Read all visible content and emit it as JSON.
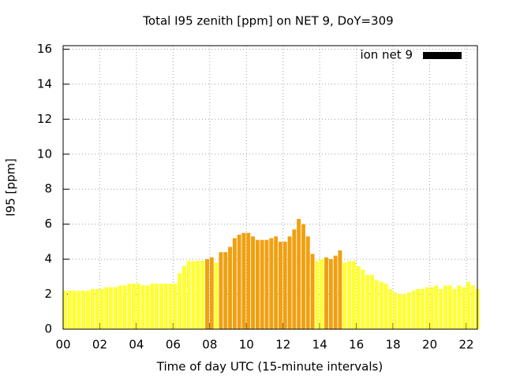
{
  "chart_data": {
    "type": "bar",
    "title": "Total I95 zenith [ppm] on NET 9, DoY=309",
    "xlabel": "Time of day UTC (15-minute intervals)",
    "ylabel": "I95 [ppm]",
    "x": [
      0,
      0.25,
      0.5,
      0.75,
      1,
      1.25,
      1.5,
      1.75,
      2,
      2.25,
      2.5,
      2.75,
      3,
      3.25,
      3.5,
      3.75,
      4,
      4.25,
      4.5,
      4.75,
      5,
      5.25,
      5.5,
      5.75,
      6,
      6.25,
      6.5,
      6.75,
      7,
      7.25,
      7.5,
      7.75,
      8,
      8.25,
      8.5,
      8.75,
      9,
      9.25,
      9.5,
      9.75,
      10,
      10.25,
      10.5,
      10.75,
      11,
      11.25,
      11.5,
      11.75,
      12,
      12.25,
      12.5,
      12.75,
      13,
      13.25,
      13.5,
      13.75,
      14,
      14.25,
      14.5,
      14.75,
      15,
      15.25,
      15.5,
      15.75,
      16,
      16.25,
      16.5,
      16.75,
      17,
      17.25,
      17.5,
      17.75,
      18,
      18.25,
      18.5,
      18.75,
      19,
      19.25,
      19.5,
      19.75,
      20,
      20.25,
      20.5,
      20.75,
      21,
      21.25,
      21.5,
      21.75,
      22,
      22.25,
      22.5
    ],
    "series": [
      {
        "name": "ion net 9",
        "color": "#000000",
        "values": [
          2.2,
          2.2,
          2.2,
          2.2,
          2.2,
          2.2,
          2.3,
          2.3,
          2.3,
          2.4,
          2.4,
          2.4,
          2.5,
          2.5,
          2.6,
          2.6,
          2.6,
          2.5,
          2.5,
          2.6,
          2.6,
          2.6,
          2.6,
          2.6,
          2.6,
          3.2,
          3.6,
          3.9,
          3.9,
          3.9,
          3.9,
          4.0,
          4.1,
          3.8,
          4.4,
          4.4,
          4.7,
          5.2,
          5.4,
          5.5,
          5.5,
          5.3,
          5.1,
          5.1,
          5.1,
          5.2,
          5.3,
          5.0,
          5.0,
          5.3,
          5.7,
          6.3,
          6.0,
          5.3,
          4.3,
          3.9,
          4.0,
          4.1,
          4.0,
          4.2,
          4.5,
          3.8,
          3.9,
          3.9,
          3.6,
          3.4,
          3.1,
          3.1,
          2.8,
          2.7,
          2.6,
          2.3,
          2.1,
          2.0,
          2.0,
          2.1,
          2.2,
          2.3,
          2.3,
          2.4,
          2.4,
          2.5,
          2.3,
          2.5,
          2.5,
          2.3,
          2.5,
          2.4,
          2.7,
          2.5,
          2.3
        ],
        "colors": [
          "#ffff33",
          "#ffff33",
          "#ffff33",
          "#ffff33",
          "#ffff33",
          "#ffff33",
          "#ffff33",
          "#ffff33",
          "#ffff33",
          "#ffff33",
          "#ffff33",
          "#ffff33",
          "#ffff33",
          "#ffff33",
          "#ffff33",
          "#ffff33",
          "#ffff33",
          "#ffff33",
          "#ffff33",
          "#ffff33",
          "#ffff33",
          "#ffff33",
          "#ffff33",
          "#ffff33",
          "#ffff33",
          "#ffff33",
          "#ffff33",
          "#ffff33",
          "#ffff33",
          "#ffff33",
          "#ffff33",
          "#f0a010",
          "#f0a010",
          "#ffff33",
          "#f0a010",
          "#f0a010",
          "#f0a010",
          "#f0a010",
          "#f0a010",
          "#f0a010",
          "#f0a010",
          "#f0a010",
          "#f0a010",
          "#f0a010",
          "#f0a010",
          "#f0a010",
          "#f0a010",
          "#f0a010",
          "#f0a010",
          "#f0a010",
          "#f0a010",
          "#f0a010",
          "#f0a010",
          "#f0a010",
          "#f0a010",
          "#ffff33",
          "#ffff33",
          "#f0a010",
          "#f0a010",
          "#f0a010",
          "#f0a010",
          "#ffff33",
          "#ffff33",
          "#ffff33",
          "#ffff33",
          "#ffff33",
          "#ffff33",
          "#ffff33",
          "#ffff33",
          "#ffff33",
          "#ffff33",
          "#ffff33",
          "#ffff33",
          "#ffff33",
          "#ffff33",
          "#ffff33",
          "#ffff33",
          "#ffff33",
          "#ffff33",
          "#ffff33",
          "#ffff33",
          "#ffff33",
          "#ffff33",
          "#ffff33",
          "#ffff33",
          "#ffff33",
          "#ffff33",
          "#ffff33",
          "#ffff33",
          "#ffff33",
          "#ffff33"
        ]
      }
    ],
    "xlim": [
      0,
      22.6
    ],
    "xticks": [
      {
        "value": 0,
        "label": "00"
      },
      {
        "value": 2,
        "label": "02"
      },
      {
        "value": 4,
        "label": "04"
      },
      {
        "value": 6,
        "label": "06"
      },
      {
        "value": 8,
        "label": "08"
      },
      10,
      12,
      14,
      16,
      18,
      20,
      22
    ],
    "ylim": [
      0,
      16.2
    ],
    "yticks": [
      0,
      2,
      4,
      6,
      8,
      10,
      12,
      14,
      16
    ],
    "grid": true,
    "legend": "top-right"
  }
}
